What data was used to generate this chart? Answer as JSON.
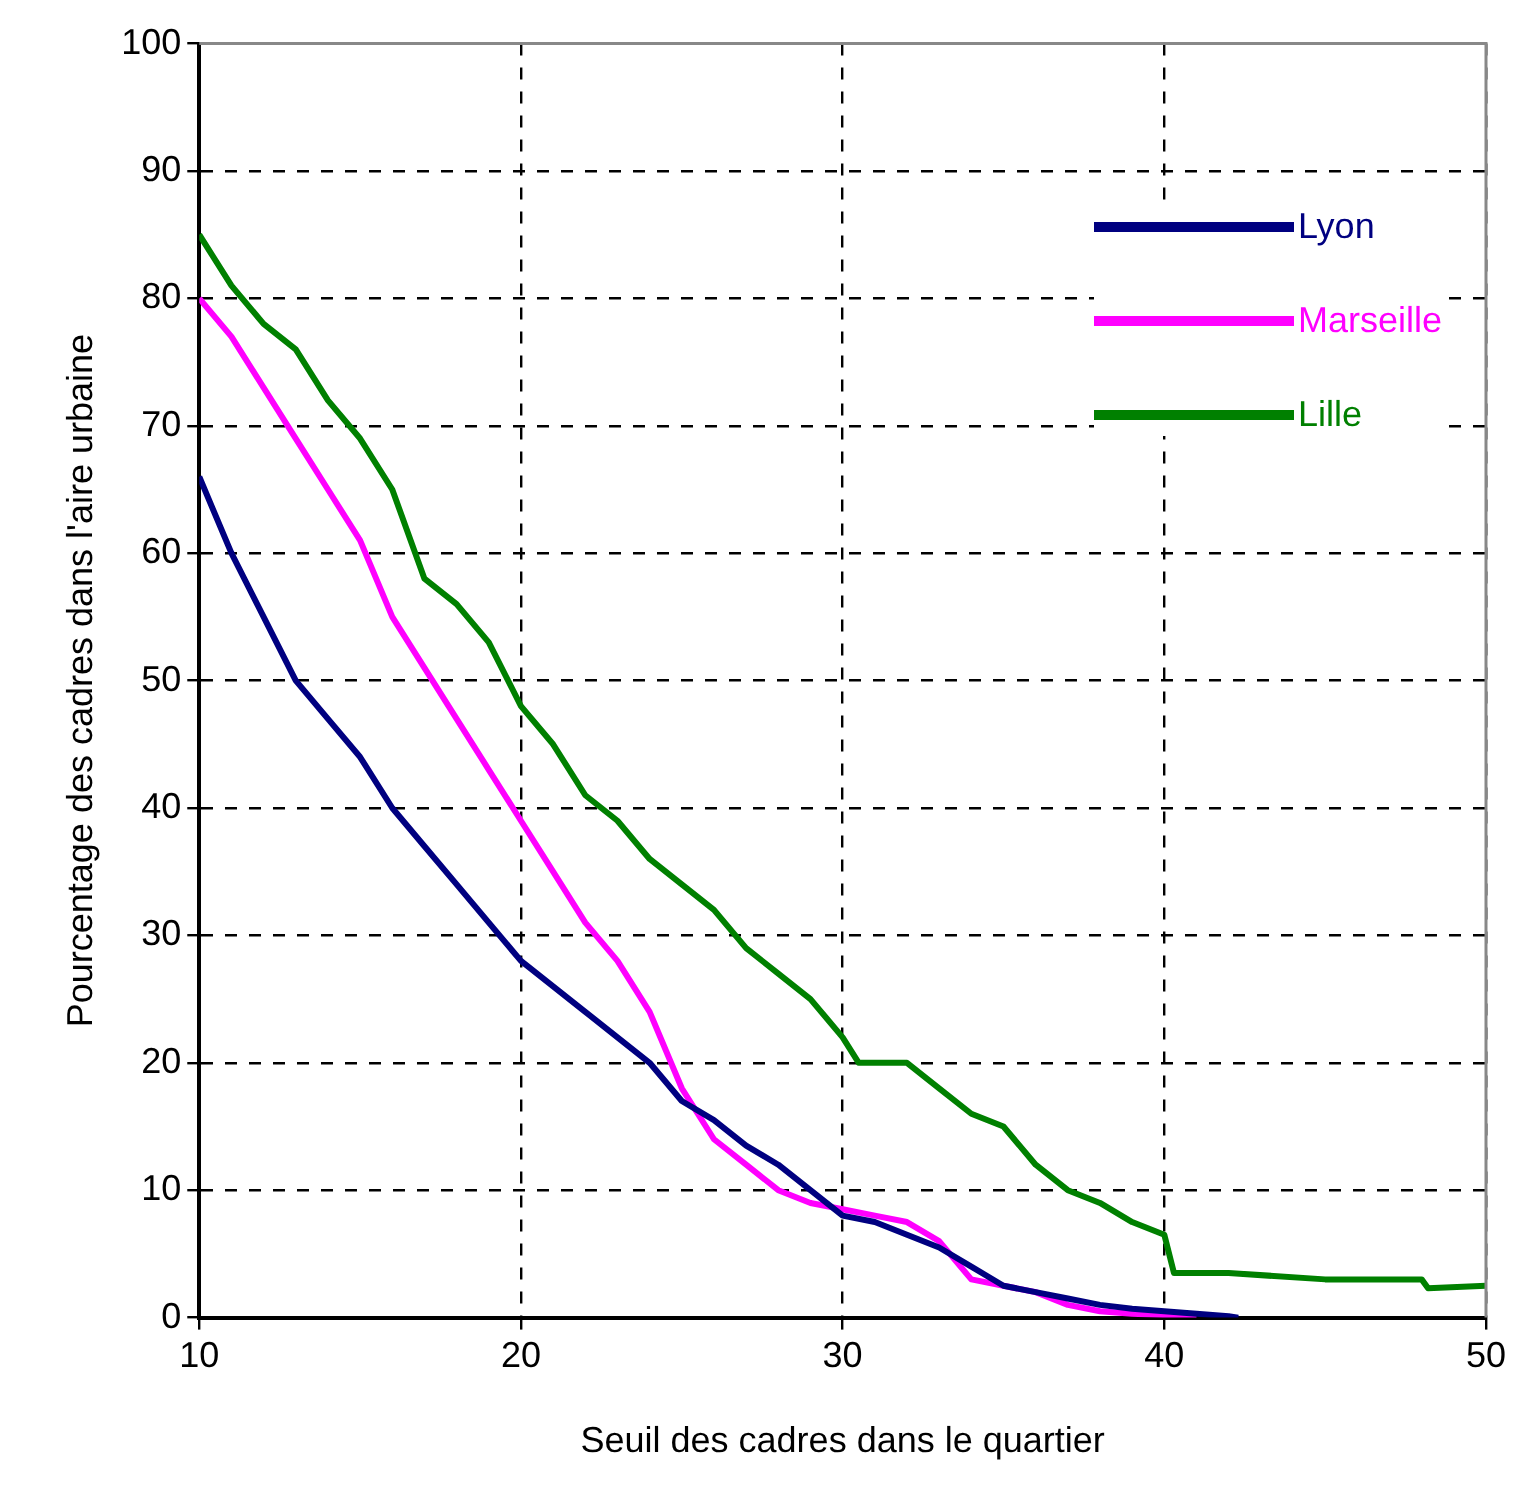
{
  "chart_data": {
    "type": "line",
    "xlabel": "Seuil des cadres dans le quartier",
    "ylabel": "Pourcentage des cadres dans l'aire urbaine",
    "xlim": [
      10,
      50
    ],
    "xticks": [
      10,
      20,
      30,
      40,
      50
    ],
    "ylim": [
      0,
      100
    ],
    "yticks": [
      0,
      10,
      20,
      30,
      40,
      50,
      60,
      70,
      80,
      90,
      100
    ],
    "grid": true,
    "legend": "top right",
    "marker": "none",
    "line_style": "solid",
    "series": [
      {
        "name": "Lyon",
        "color": "#000080",
        "x": [
          10,
          11,
          12,
          13,
          14,
          15,
          16,
          17,
          18,
          19,
          20,
          21,
          22,
          23,
          24,
          25,
          26,
          27,
          28,
          29,
          30,
          31,
          32,
          33,
          34,
          35,
          36,
          37,
          38,
          39,
          40,
          41,
          42,
          42.3
        ],
        "values": [
          66,
          60,
          55,
          50,
          47,
          44,
          40,
          37,
          34,
          31,
          28,
          26,
          24,
          22,
          20,
          17,
          15.5,
          13.5,
          12,
          10,
          8,
          7.5,
          6.5,
          5.5,
          4,
          2.5,
          2,
          1.5,
          1,
          0.7,
          0.5,
          0.3,
          0.1,
          0
        ]
      },
      {
        "name": "Marseille",
        "color": "#ff00ff",
        "x": [
          10,
          11,
          12,
          13,
          14,
          15,
          16,
          17,
          18,
          19,
          20,
          21,
          22,
          23,
          24,
          25,
          26,
          27,
          28,
          29,
          30,
          31,
          32,
          33,
          34,
          35,
          36,
          37,
          38,
          39,
          40,
          41
        ],
        "values": [
          80,
          77,
          73,
          69,
          65,
          61,
          55,
          51,
          47,
          43,
          39,
          35,
          31,
          28,
          24,
          18,
          14,
          12,
          10,
          9,
          8.5,
          8,
          7.5,
          6,
          3,
          2.5,
          2,
          1,
          0.5,
          0.3,
          0.2,
          0
        ]
      },
      {
        "name": "Lille",
        "color": "#008000",
        "x": [
          10,
          11,
          12,
          13,
          14,
          15,
          16,
          17,
          18,
          19,
          20,
          21,
          22,
          23,
          24,
          25,
          26,
          27,
          28,
          29,
          30,
          30.5,
          32,
          33,
          34,
          35,
          36,
          37,
          38,
          39,
          40,
          40.3,
          42,
          45,
          48,
          48.2,
          50
        ],
        "values": [
          85,
          81,
          78,
          76,
          72,
          69,
          65,
          58,
          56,
          53,
          48,
          45,
          41,
          39,
          36,
          34,
          32,
          29,
          27,
          25,
          22,
          20,
          20,
          18,
          16,
          15,
          12,
          10,
          9,
          7.5,
          6.5,
          3.5,
          3.5,
          3,
          3,
          2.3,
          2.5
        ]
      }
    ]
  }
}
